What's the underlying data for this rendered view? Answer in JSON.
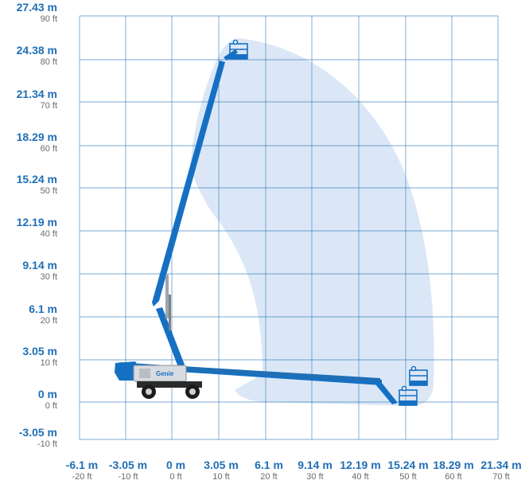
{
  "chart_data": {
    "type": "diagram",
    "y_axis": {
      "meters": [
        "27.43 m",
        "24.38 m",
        "21.34 m",
        "18.29 m",
        "15.24 m",
        "12.19 m",
        "9.14 m",
        "6.1 m",
        "3.05 m",
        "0 m",
        "-3.05 m"
      ],
      "feet": [
        "90 ft",
        "80 ft",
        "70 ft",
        "60 ft",
        "50 ft",
        "40 ft",
        "30 ft",
        "20 ft",
        "10 ft",
        "0 ft",
        "-10 ft"
      ]
    },
    "x_axis": {
      "meters": [
        "-6.1 m",
        "-3.05 m",
        "0 m",
        "3.05 m",
        "6.1 m",
        "9.14 m",
        "12.19 m",
        "15.24 m",
        "18.29 m",
        "21.34 m"
      ],
      "feet": [
        "-20 ft",
        "-10 ft",
        "0 ft",
        "10 ft",
        "20 ft",
        "30 ft",
        "40 ft",
        "50 ft",
        "60 ft",
        "70 ft"
      ]
    },
    "grid": true,
    "machine_brand": "Genie",
    "colors": {
      "grid": "#1f6fb6",
      "envelope": "#dbe7f6",
      "boom": "#1570c4",
      "label_m": "#1f6fb6",
      "label_ft": "#6b6b6b"
    }
  }
}
